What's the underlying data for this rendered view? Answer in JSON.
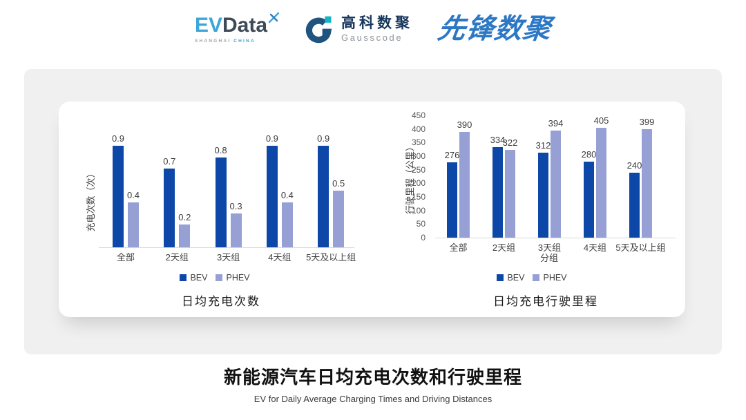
{
  "header": {
    "evdata": {
      "name_ev": "EV",
      "name_data": "Data",
      "sub_left": "SHANGHAI",
      "sub_right": "CHINA",
      "color_ev": "#3ba6d8",
      "color_data": "#3d4a58"
    },
    "gausscode": {
      "cn": "高科数聚",
      "en": "Gausscode",
      "icon_color": "#1f5380",
      "icon_accent": "#14b3c7"
    },
    "xianfeng": {
      "text": "先锋数聚",
      "color": "#2d78c5"
    }
  },
  "chart_data": [
    {
      "type": "bar",
      "title": "日均充电次数",
      "ylabel": "充电次数（次）",
      "xlabel": "",
      "categories": [
        "全部",
        "2天组",
        "3天组",
        "4天组",
        "5天及以上组"
      ],
      "series": [
        {
          "name": "BEV",
          "color": "#0d47a8",
          "values": [
            0.9,
            0.7,
            0.8,
            0.9,
            0.9
          ]
        },
        {
          "name": "PHEV",
          "color": "#96a0d4",
          "values": [
            0.4,
            0.2,
            0.3,
            0.4,
            0.5
          ]
        }
      ],
      "ylim": [
        0,
        1
      ],
      "yticks": [],
      "grid": false,
      "legend_position": "bottom",
      "value_labels": true
    },
    {
      "type": "bar",
      "title": "日均充电行驶里程",
      "ylabel": "行驶里程（公里）",
      "xlabel": "分组",
      "categories": [
        "全部",
        "2天组",
        "3天组",
        "4天组",
        "5天及以上组"
      ],
      "series": [
        {
          "name": "BEV",
          "color": "#0d47a8",
          "values": [
            276,
            334,
            312,
            280,
            240
          ]
        },
        {
          "name": "PHEV",
          "color": "#96a0d4",
          "values": [
            390,
            322,
            394,
            405,
            399
          ]
        }
      ],
      "ylim": [
        0,
        450
      ],
      "yticks": [
        0,
        50,
        100,
        150,
        200,
        250,
        300,
        350,
        400,
        450
      ],
      "grid": false,
      "legend_position": "bottom",
      "value_labels": true
    }
  ],
  "footer": {
    "title_cn": "新能源汽车日均充电次数和行驶里程",
    "subtitle_en": "EV for Daily Average Charging Times and Driving Distances"
  }
}
